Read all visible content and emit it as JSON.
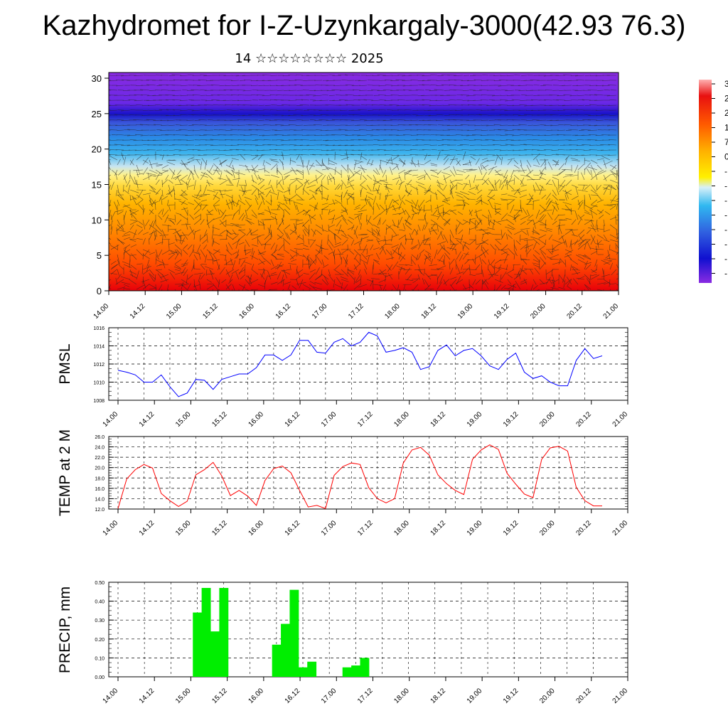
{
  "title": "Kazhydromet for I-Z-Uzynkargaly-3000(42.93 76.3)",
  "subtitle": "14 ☆☆☆☆☆☆☆☆ 2025",
  "colors": {
    "pmsl_line": "#0000ff",
    "temp_line": "#ff0000",
    "precip_bar": "#00ee00",
    "cross_section_top": "#8a2be2",
    "cross_section_bottom": "#ff0000"
  },
  "chart_data": [
    {
      "type": "heatmap",
      "name": "cross-section",
      "ylim": [
        0,
        30
      ],
      "yticks": [
        "0",
        "5",
        "10",
        "15",
        "20",
        "25",
        "30"
      ],
      "xticks": [
        "14.00",
        "14.12",
        "15.00",
        "15.12",
        "16.00",
        "16.12",
        "17.00",
        "17.12",
        "18.00",
        "18.12",
        "19.00",
        "19.12",
        "20.00",
        "20.12",
        "21.00"
      ],
      "colorbar_labels": [
        "3",
        "2",
        "2",
        "1",
        "7",
        "0",
        "-",
        "-",
        "-",
        "-",
        "-",
        "-",
        "-",
        "-"
      ]
    },
    {
      "type": "line",
      "name": "pmsl",
      "ylabel": "PMSL",
      "ylim": [
        1008,
        1016
      ],
      "yticks": [
        "1008",
        "1010",
        "1012",
        "1014",
        "1016"
      ],
      "xticks": [
        "14.00",
        "14.12",
        "15.00",
        "15.12",
        "16.00",
        "16.12",
        "17.00",
        "17.12",
        "18.00",
        "18.12",
        "19.00",
        "19.12",
        "20.00",
        "20.12",
        "21.00"
      ],
      "values": [
        1011.3,
        1011.1,
        1010.8,
        1010.0,
        1010.0,
        1010.8,
        1009.5,
        1008.4,
        1008.8,
        1010.3,
        1010.2,
        1009.2,
        1010.3,
        1010.6,
        1010.9,
        1010.9,
        1011.6,
        1013.0,
        1013.0,
        1012.4,
        1013.0,
        1014.6,
        1014.6,
        1013.3,
        1013.2,
        1014.4,
        1014.8,
        1014.0,
        1014.4,
        1015.5,
        1015.1,
        1013.3,
        1013.5,
        1013.8,
        1013.3,
        1011.4,
        1011.7,
        1013.5,
        1014.1,
        1012.9,
        1013.5,
        1013.7,
        1012.9,
        1011.8,
        1011.4,
        1012.5,
        1013.2,
        1011.1,
        1010.4,
        1010.7,
        1010.0,
        1009.6,
        1009.6,
        1012.4,
        1013.7,
        1012.6,
        1012.9
      ]
    },
    {
      "type": "line",
      "name": "temp",
      "ylabel": "TEMP at 2 M",
      "ylim": [
        12,
        26
      ],
      "yticks": [
        "12.0",
        "14.0",
        "16.0",
        "18.0",
        "20.0",
        "22.0",
        "24.0",
        "26.0"
      ],
      "xticks": [
        "14.00",
        "14.12",
        "15.00",
        "15.12",
        "16.00",
        "16.12",
        "17.00",
        "17.12",
        "18.00",
        "18.12",
        "19.00",
        "19.12",
        "20.00",
        "20.12",
        "21.00"
      ],
      "values": [
        12.1,
        17.8,
        19.6,
        20.6,
        19.9,
        15.0,
        13.6,
        12.5,
        13.5,
        18.6,
        19.6,
        21.0,
        18.4,
        14.6,
        15.6,
        14.5,
        12.7,
        17.5,
        19.8,
        20.3,
        19.0,
        15.6,
        12.4,
        12.7,
        12.1,
        18.5,
        20.2,
        20.9,
        20.6,
        16.1,
        14.0,
        13.2,
        14.0,
        20.9,
        23.4,
        23.9,
        22.4,
        18.6,
        16.9,
        15.6,
        14.8,
        21.6,
        23.4,
        24.4,
        23.5,
        18.9,
        16.8,
        14.9,
        14.2,
        21.6,
        23.8,
        24.1,
        23.2,
        16.2,
        13.6,
        12.6,
        12.6
      ]
    },
    {
      "type": "bar",
      "name": "precip",
      "ylabel": "PRECIP, mm",
      "ylim": [
        0,
        0.5
      ],
      "yticks": [
        "0.00",
        "0.10",
        "0.20",
        "0.30",
        "0.40",
        "0.50"
      ],
      "xticks": [
        "14.00",
        "14.12",
        "15.00",
        "15.12",
        "16.00",
        "16.12",
        "17.00",
        "17.12",
        "18.00",
        "18.12",
        "19.00",
        "19.12",
        "20.00",
        "20.12",
        "21.00"
      ],
      "values": [
        0,
        0,
        0,
        0,
        0,
        0,
        0,
        0,
        0,
        0.34,
        0.47,
        0.24,
        0.47,
        0,
        0,
        0,
        0,
        0,
        0.17,
        0.28,
        0.46,
        0.05,
        0.08,
        0,
        0,
        0,
        0.05,
        0.06,
        0.1,
        0,
        0,
        0,
        0,
        0,
        0,
        0,
        0,
        0,
        0,
        0,
        0,
        0,
        0,
        0,
        0,
        0,
        0,
        0,
        0,
        0,
        0,
        0,
        0,
        0,
        0,
        0
      ]
    }
  ]
}
